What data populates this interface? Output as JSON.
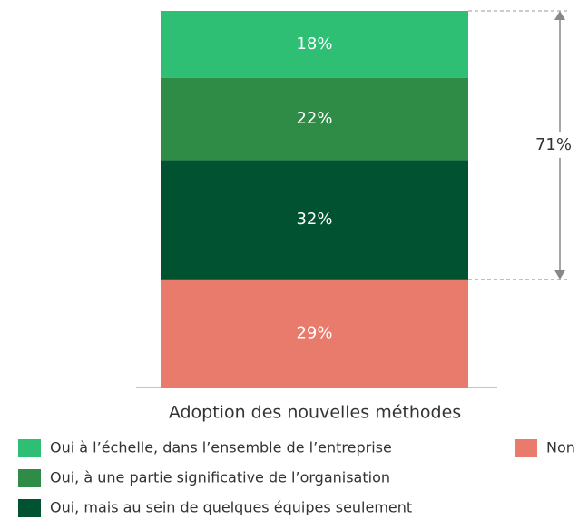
{
  "chart_data": {
    "type": "stacked_bar",
    "categories": [
      "Adoption des nouvelles méthodes"
    ],
    "series": [
      {
        "name": "Oui à l’échelle, dans l’ensemble de l’entreprise",
        "color": "#2ebf75",
        "values": [
          18
        ],
        "value_labels": [
          "18%"
        ]
      },
      {
        "name": "Oui, à une partie significative de l’organisation",
        "color": "#2f8c47",
        "values": [
          22
        ],
        "value_labels": [
          "22%"
        ]
      },
      {
        "name": "Oui, mais au sein de quelques équipes seulement",
        "color": "#005230",
        "values": [
          32
        ],
        "value_labels": [
          "32%"
        ]
      },
      {
        "name": "Non",
        "color": "#e87b6b",
        "values": [
          29
        ],
        "value_labels": [
          "29%"
        ]
      }
    ],
    "ylim": [
      0,
      101
    ],
    "annotation": {
      "value": 71,
      "label": "71%"
    }
  }
}
